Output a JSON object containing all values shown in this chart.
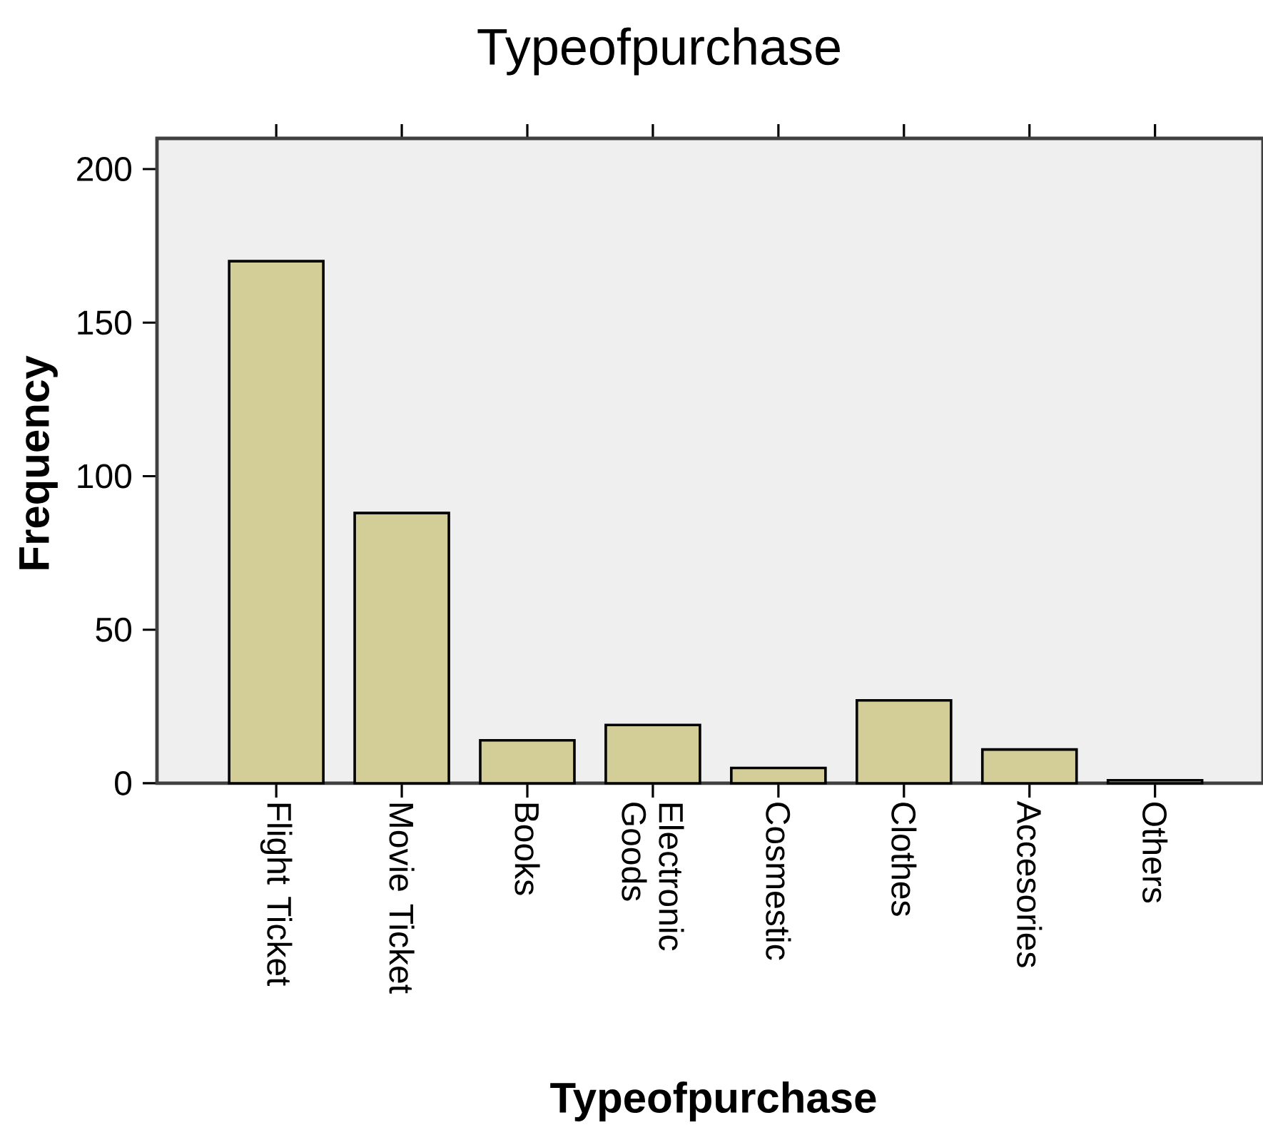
{
  "chart_data": {
    "type": "bar",
    "title": "Typeofpurchase",
    "xlabel": "Typeofpurchase",
    "ylabel": "Frequency",
    "categories": [
      "Flight Ticket",
      "Movie Ticket",
      "Books",
      "Electronic Goods",
      "Cosmestic",
      "Clothes",
      "Accesories",
      "Others"
    ],
    "values": [
      170,
      88,
      14,
      19,
      5,
      27,
      11,
      1
    ],
    "color": "#d3ce97",
    "ylim": [
      0,
      210
    ],
    "yticks": [
      0,
      50,
      100,
      150,
      200
    ]
  }
}
